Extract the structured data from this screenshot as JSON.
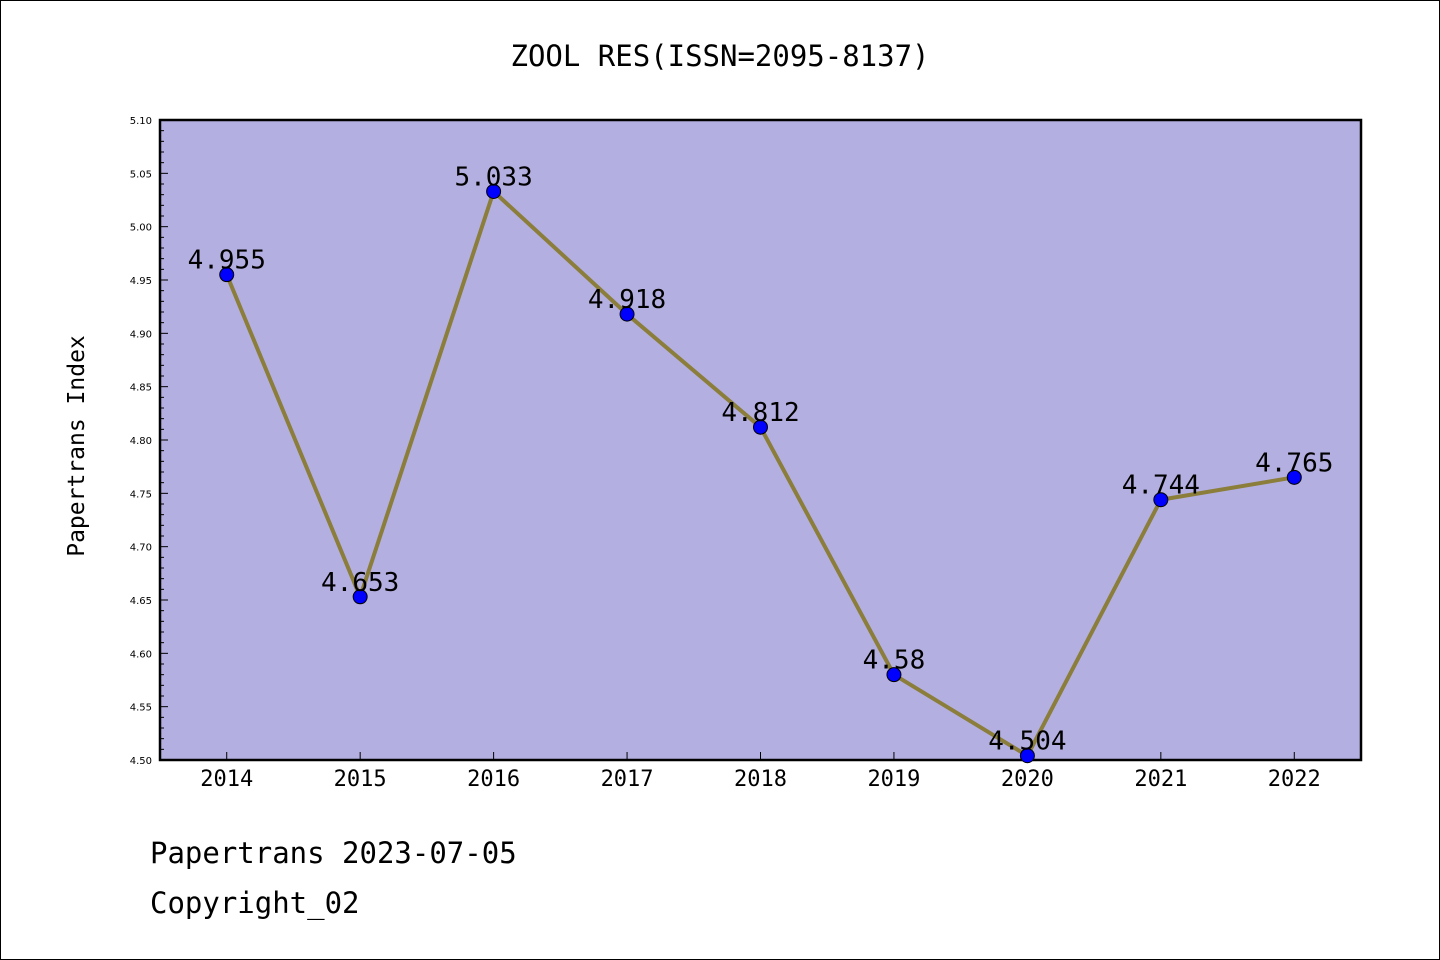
{
  "chart_data": {
    "type": "line",
    "title": "ZOOL RES(ISSN=2095-8137)",
    "xlabel": "",
    "ylabel": "Papertrans Index",
    "categories": [
      "2014",
      "2015",
      "2016",
      "2017",
      "2018",
      "2019",
      "2020",
      "2021",
      "2022"
    ],
    "values": [
      4.955,
      4.653,
      5.033,
      4.918,
      4.812,
      4.58,
      4.504,
      4.744,
      4.765
    ],
    "data_labels": [
      "4.955",
      "4.653",
      "5.033",
      "4.918",
      "4.812",
      "4.58",
      "4.504",
      "4.744",
      "4.765"
    ],
    "ylim": [
      4.5,
      5.1
    ],
    "yticks": [
      "4.50",
      "4.55",
      "4.60",
      "4.65",
      "4.70",
      "4.75",
      "4.80",
      "4.85",
      "4.90",
      "4.95",
      "5.00",
      "5.05",
      "5.10"
    ],
    "grid": false,
    "legend": "none",
    "colors": {
      "plot_background": "#b4afe1",
      "line": "#8b7d3a",
      "marker": "#0000ff"
    }
  },
  "footer": {
    "line1": "Papertrans 2023-07-05",
    "line2": "Copyright_02"
  }
}
